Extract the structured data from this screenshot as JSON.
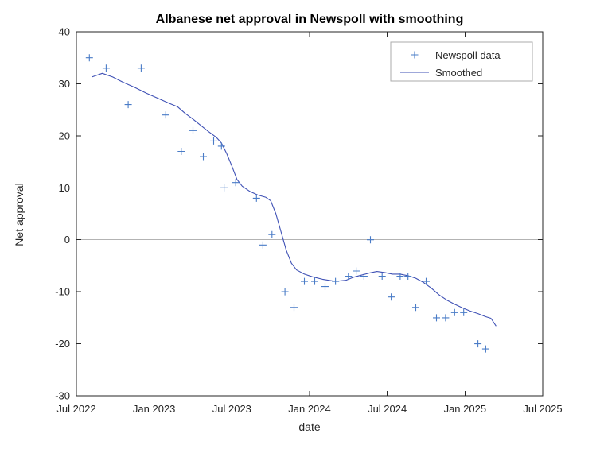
{
  "chart_data": {
    "type": "scatter",
    "title": "Albanese net approval in Newspoll with smoothing",
    "xlabel": "date",
    "ylabel": "Net approval",
    "ylim": [
      -30,
      40
    ],
    "yticks": [
      -30,
      -20,
      -10,
      0,
      10,
      20,
      30,
      40
    ],
    "x_unit": "months since Jul 2022",
    "x_range": [
      0,
      36
    ],
    "xticks": [
      {
        "pos": 0,
        "label": "Jul 2022"
      },
      {
        "pos": 6,
        "label": "Jan 2023"
      },
      {
        "pos": 12,
        "label": "Jul 2023"
      },
      {
        "pos": 18,
        "label": "Jan 2024"
      },
      {
        "pos": 24,
        "label": "Jul 2024"
      },
      {
        "pos": 30,
        "label": "Jan 2025"
      },
      {
        "pos": 36,
        "label": "Jul 2025"
      }
    ],
    "grid": "off",
    "zero_line": true,
    "legend": {
      "position": "upper-right",
      "entries": [
        "Newspoll data",
        "Smoothed"
      ]
    },
    "series": [
      {
        "name": "Newspoll data",
        "type": "scatter",
        "marker": "plus",
        "color": "#4a7cc7",
        "points": [
          [
            1.0,
            35
          ],
          [
            2.3,
            33
          ],
          [
            4.0,
            26
          ],
          [
            5.0,
            33
          ],
          [
            6.9,
            24
          ],
          [
            8.1,
            17
          ],
          [
            9.0,
            21
          ],
          [
            9.8,
            16
          ],
          [
            10.6,
            19
          ],
          [
            11.2,
            18
          ],
          [
            11.4,
            10
          ],
          [
            12.3,
            11
          ],
          [
            13.9,
            8
          ],
          [
            14.4,
            -1
          ],
          [
            15.1,
            1
          ],
          [
            16.1,
            -10
          ],
          [
            16.8,
            -13
          ],
          [
            17.6,
            -8
          ],
          [
            18.4,
            -8
          ],
          [
            19.2,
            -9
          ],
          [
            20.0,
            -8
          ],
          [
            21.0,
            -7
          ],
          [
            21.6,
            -6
          ],
          [
            22.2,
            -7
          ],
          [
            22.7,
            0
          ],
          [
            23.6,
            -7
          ],
          [
            24.3,
            -11
          ],
          [
            25.0,
            -7
          ],
          [
            25.6,
            -7
          ],
          [
            26.2,
            -13
          ],
          [
            27.0,
            -8
          ],
          [
            27.8,
            -15
          ],
          [
            28.5,
            -15
          ],
          [
            29.2,
            -14
          ],
          [
            29.9,
            -14
          ],
          [
            31.0,
            -20
          ],
          [
            31.6,
            -21
          ]
        ]
      },
      {
        "name": "Smoothed",
        "type": "line",
        "color": "#3f51b5",
        "points": [
          [
            1.2,
            31.3
          ],
          [
            2.0,
            32.0
          ],
          [
            2.8,
            31.3
          ],
          [
            3.6,
            30.3
          ],
          [
            4.5,
            29.3
          ],
          [
            5.4,
            28.2
          ],
          [
            6.3,
            27.2
          ],
          [
            7.2,
            26.2
          ],
          [
            7.8,
            25.6
          ],
          [
            8.4,
            24.3
          ],
          [
            9.0,
            23.2
          ],
          [
            9.6,
            22.0
          ],
          [
            10.2,
            20.8
          ],
          [
            10.8,
            19.7
          ],
          [
            11.2,
            18.6
          ],
          [
            11.6,
            16.6
          ],
          [
            12.0,
            14.2
          ],
          [
            12.4,
            11.6
          ],
          [
            12.8,
            10.3
          ],
          [
            13.4,
            9.3
          ],
          [
            14.0,
            8.6
          ],
          [
            14.6,
            8.2
          ],
          [
            15.0,
            7.5
          ],
          [
            15.4,
            5.0
          ],
          [
            15.8,
            1.5
          ],
          [
            16.2,
            -2.0
          ],
          [
            16.6,
            -4.5
          ],
          [
            17.0,
            -5.8
          ],
          [
            17.6,
            -6.6
          ],
          [
            18.2,
            -7.1
          ],
          [
            19.0,
            -7.6
          ],
          [
            20.0,
            -8.0
          ],
          [
            20.8,
            -7.8
          ],
          [
            21.4,
            -7.2
          ],
          [
            22.0,
            -6.8
          ],
          [
            22.6,
            -6.4
          ],
          [
            23.2,
            -6.1
          ],
          [
            23.8,
            -6.3
          ],
          [
            24.4,
            -6.6
          ],
          [
            25.0,
            -6.6
          ],
          [
            25.6,
            -6.9
          ],
          [
            26.2,
            -7.4
          ],
          [
            26.8,
            -8.2
          ],
          [
            27.4,
            -9.3
          ],
          [
            28.0,
            -10.6
          ],
          [
            28.6,
            -11.6
          ],
          [
            29.2,
            -12.4
          ],
          [
            29.8,
            -13.1
          ],
          [
            30.4,
            -13.7
          ],
          [
            31.0,
            -14.2
          ],
          [
            31.6,
            -14.8
          ],
          [
            32.0,
            -15.1
          ],
          [
            32.4,
            -16.6
          ]
        ]
      }
    ]
  }
}
